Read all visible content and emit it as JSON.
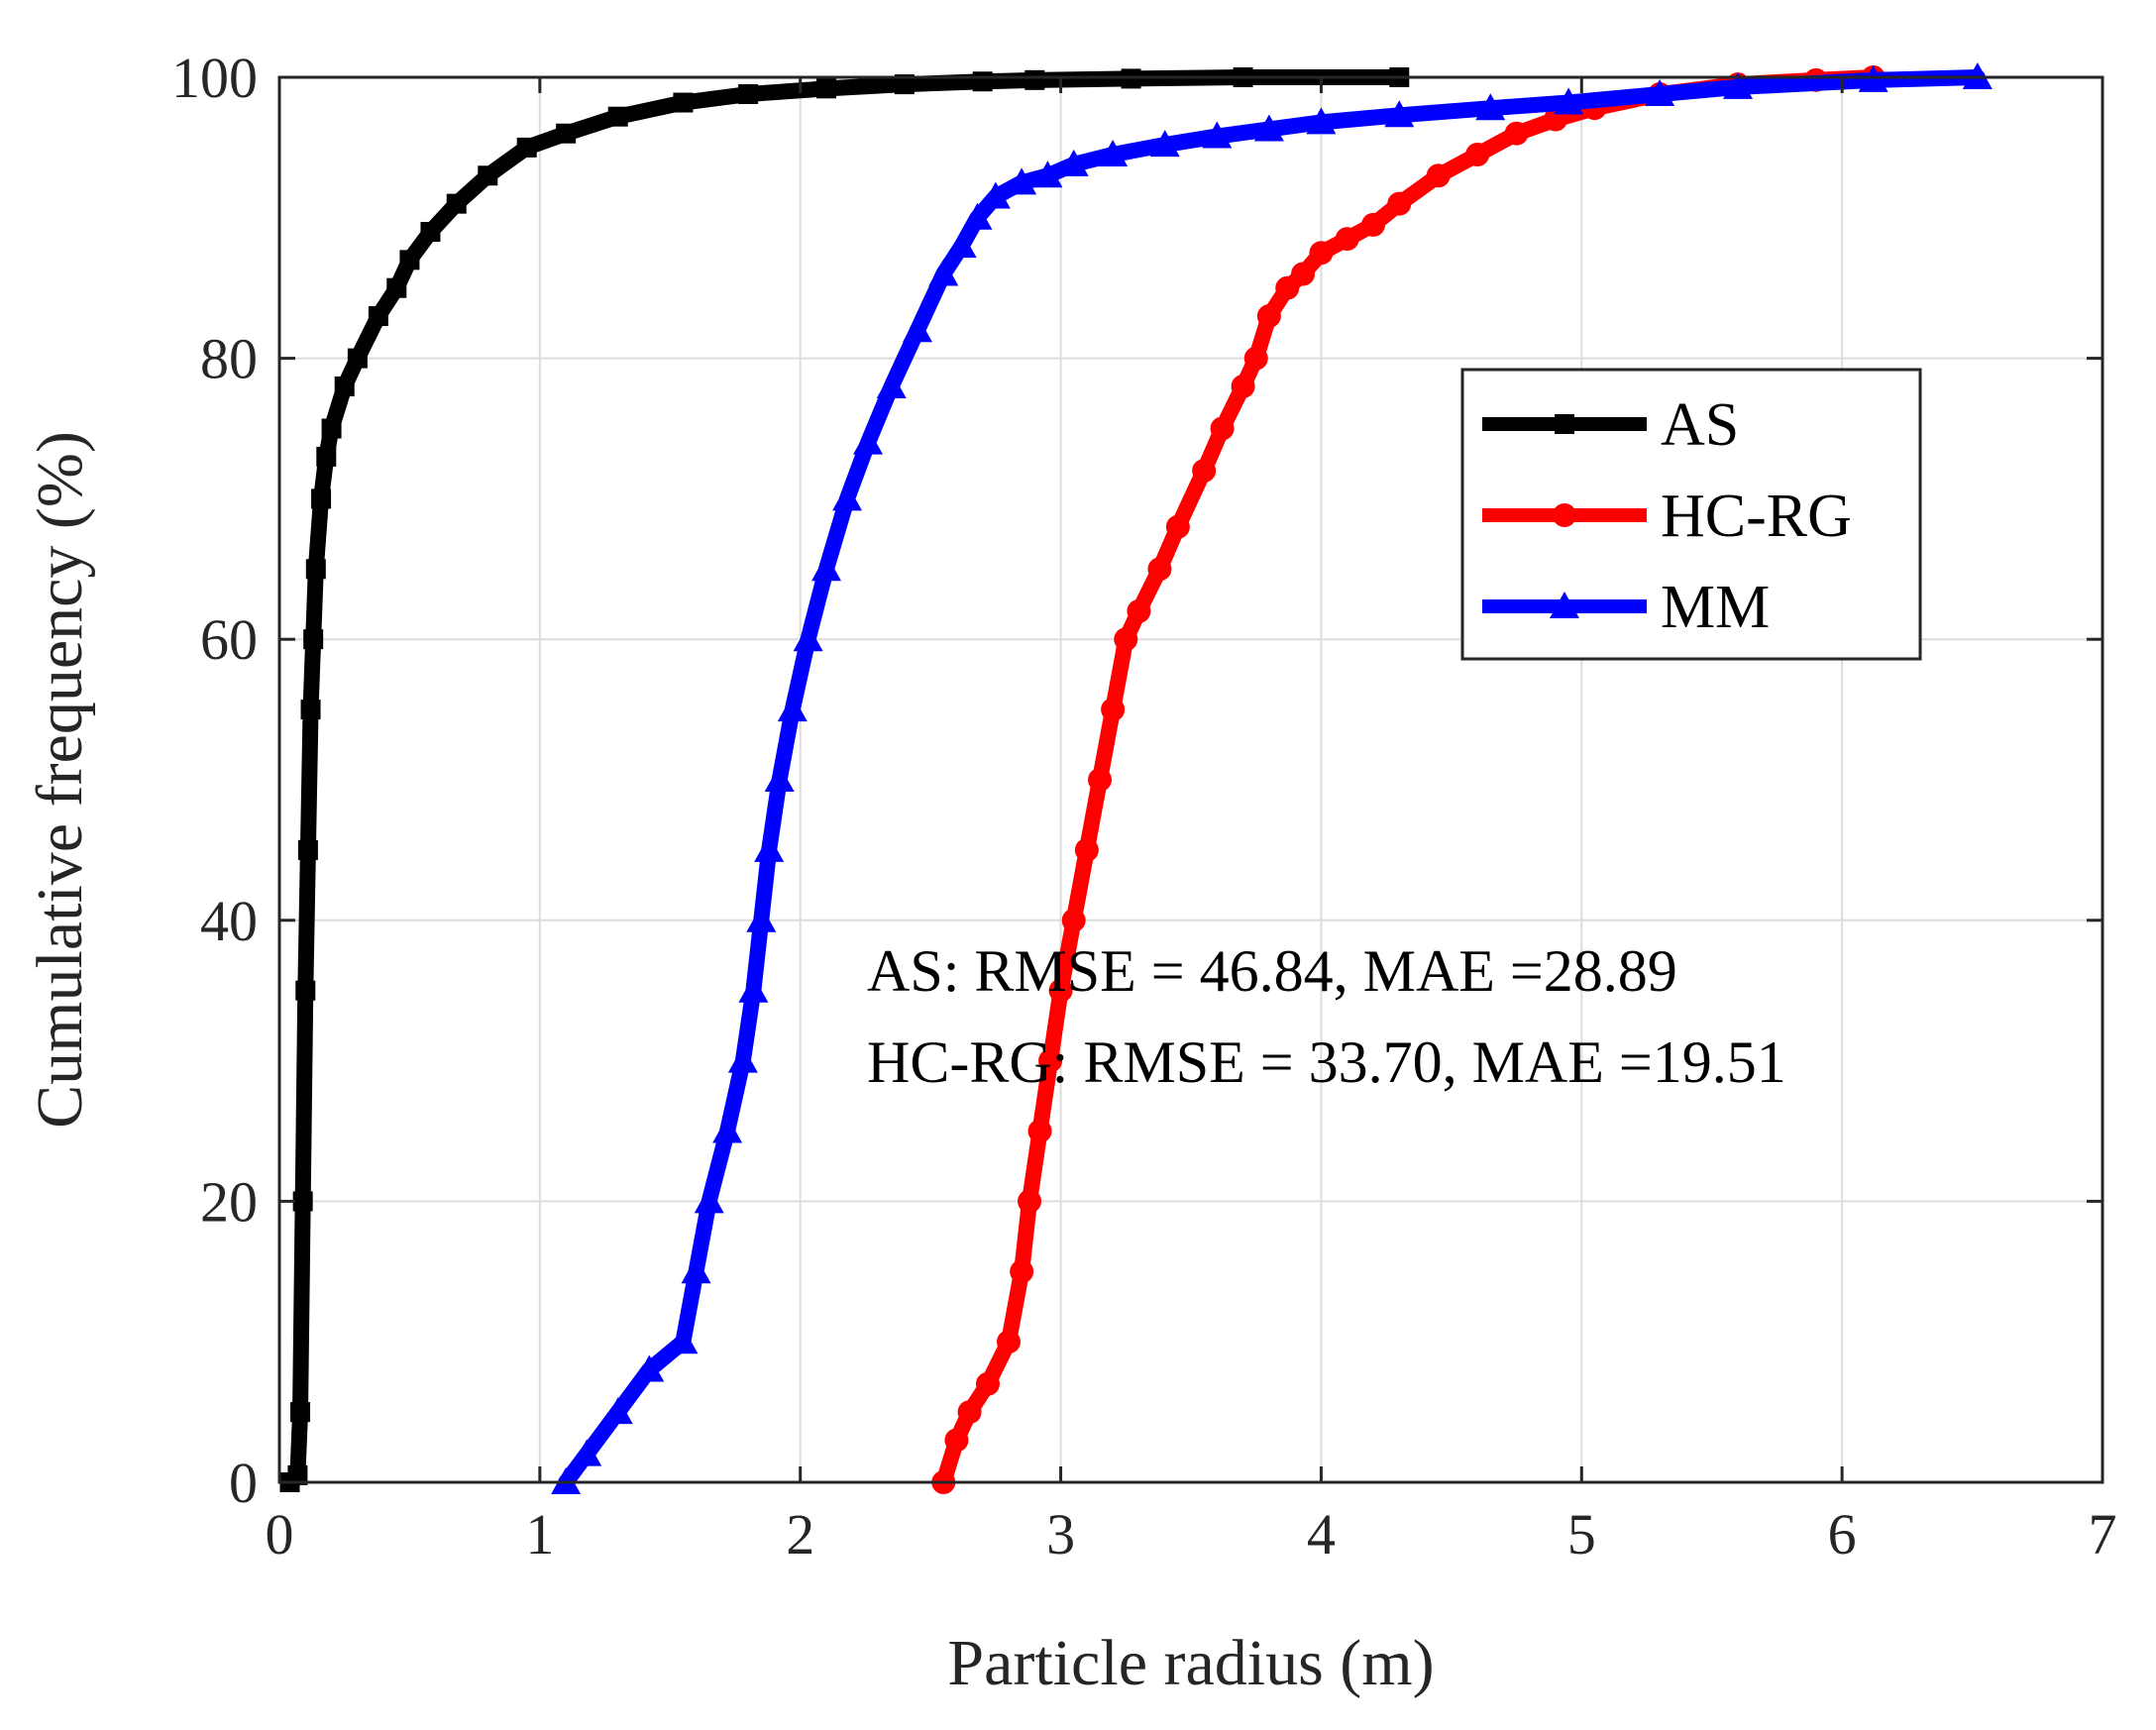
{
  "chart_data": {
    "type": "line",
    "title": "",
    "xlabel": "Particle radius (m)",
    "ylabel": "Cumulative frequency (%)",
    "xlim": [
      0,
      7
    ],
    "ylim": [
      0,
      100
    ],
    "grid": true,
    "xticks": [
      "0",
      "1",
      "2",
      "3",
      "4",
      "5",
      "6",
      "7"
    ],
    "yticks": [
      "0",
      "20",
      "40",
      "60",
      "80",
      "100"
    ],
    "legend": {
      "position": "right-upper"
    },
    "series": [
      {
        "name": "AS",
        "color": "#000000",
        "marker": "square",
        "x": [
          0.04,
          0.07,
          0.08,
          0.09,
          0.1,
          0.11,
          0.12,
          0.13,
          0.14,
          0.16,
          0.18,
          0.2,
          0.25,
          0.3,
          0.38,
          0.45,
          0.5,
          0.58,
          0.68,
          0.8,
          0.95,
          1.1,
          1.3,
          1.55,
          1.8,
          2.1,
          2.4,
          2.7,
          2.9,
          3.27,
          3.7,
          4.3
        ],
        "y": [
          0,
          0.5,
          5,
          20,
          35,
          45,
          55,
          60,
          65,
          70,
          73,
          75,
          78,
          80,
          83,
          85,
          87,
          89,
          91,
          93,
          95,
          96,
          97.2,
          98.2,
          98.8,
          99.2,
          99.5,
          99.7,
          99.8,
          99.9,
          100,
          100
        ]
      },
      {
        "name": "HC-RG",
        "color": "#ff0000",
        "marker": "circle",
        "x": [
          2.55,
          2.6,
          2.65,
          2.72,
          2.8,
          2.85,
          2.88,
          2.92,
          2.96,
          3.0,
          3.05,
          3.1,
          3.15,
          3.2,
          3.25,
          3.3,
          3.38,
          3.45,
          3.55,
          3.62,
          3.7,
          3.75,
          3.8,
          3.87,
          3.93,
          4.0,
          4.1,
          4.2,
          4.3,
          4.45,
          4.6,
          4.75,
          4.9,
          5.05,
          5.3,
          5.6,
          5.9,
          6.12
        ],
        "y": [
          0,
          3,
          5,
          7,
          10,
          15,
          20,
          25,
          30,
          35,
          40,
          45,
          50,
          55,
          60,
          62,
          65,
          68,
          72,
          75,
          78,
          80,
          83,
          85,
          86,
          87.5,
          88.5,
          89.5,
          91,
          93,
          94.5,
          96,
          97,
          97.8,
          98.8,
          99.5,
          99.8,
          100
        ]
      },
      {
        "name": "MM",
        "color": "#0000ff",
        "marker": "triangle",
        "x": [
          1.1,
          1.18,
          1.3,
          1.42,
          1.55,
          1.6,
          1.65,
          1.72,
          1.78,
          1.82,
          1.85,
          1.88,
          1.92,
          1.97,
          2.03,
          2.1,
          2.18,
          2.26,
          2.35,
          2.45,
          2.55,
          2.62,
          2.68,
          2.75,
          2.85,
          2.95,
          3.05,
          3.2,
          3.4,
          3.6,
          3.8,
          4.0,
          4.3,
          4.65,
          4.95,
          5.3,
          5.6,
          6.12,
          6.52
        ],
        "y": [
          0,
          2,
          5,
          8,
          10,
          15,
          20,
          25,
          30,
          35,
          40,
          45,
          50,
          55,
          60,
          65,
          70,
          74,
          78,
          82,
          86,
          88,
          90,
          91.5,
          92.5,
          93,
          93.8,
          94.5,
          95.2,
          95.8,
          96.3,
          96.8,
          97.3,
          97.8,
          98.2,
          98.8,
          99.3,
          99.8,
          100
        ]
      }
    ],
    "annotations": [
      "AS: RMSE = 46.84, MAE =28.89",
      "HC-RG: RMSE = 33.70, MAE =19.51"
    ]
  }
}
